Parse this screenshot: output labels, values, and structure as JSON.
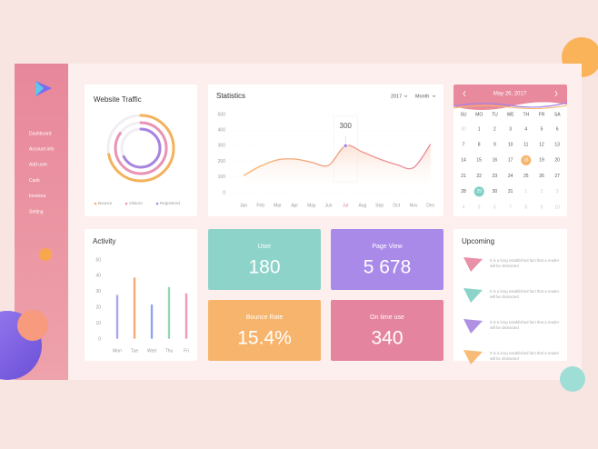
{
  "sidebar": {
    "menu": [
      "Dashboard",
      "Account info",
      "Add user",
      "Cash",
      "Invoices",
      "Setting"
    ]
  },
  "traffic": {
    "title": "Website Traffic",
    "rings": [
      {
        "name": "Bounce",
        "color": "#f5b25c",
        "value": 72
      },
      {
        "name": "Visitors",
        "color": "#e994b5",
        "value": 85
      },
      {
        "name": "Registered",
        "color": "#a784e0",
        "value": 68
      }
    ]
  },
  "statistics": {
    "title": "Statistics",
    "year": "2017",
    "period": "Month",
    "months": [
      "Jan",
      "Feb",
      "Mar",
      "Apr",
      "May",
      "Jun",
      "Jul",
      "Aug",
      "Sep",
      "Oct",
      "Nov",
      "Dec"
    ],
    "values": [
      110,
      170,
      210,
      215,
      195,
      175,
      300,
      260,
      215,
      180,
      160,
      310
    ],
    "ylim": [
      0,
      500
    ],
    "yticks": [
      0,
      100,
      200,
      300,
      400,
      500
    ],
    "highlight_color": "#e5839d"
  },
  "calendar": {
    "title": "May 26, 2017",
    "weekdays": [
      "SU",
      "MO",
      "TU",
      "WE",
      "TH",
      "FR",
      "SA"
    ],
    "weeks": [
      [
        "30",
        "1",
        "2",
        "3",
        "4",
        "5",
        "6"
      ],
      [
        "7",
        "8",
        "9",
        "10",
        "11",
        "12",
        "13"
      ],
      [
        "14",
        "15",
        "16",
        "17",
        {
          "day": "18",
          "color": "#f7b469"
        },
        "19",
        "20"
      ],
      [
        "21",
        "22",
        "23",
        "24",
        "25",
        "26",
        "27"
      ],
      [
        "28",
        {
          "day": "29",
          "color": "#7fcfc4"
        },
        "30",
        "31",
        "1",
        "2",
        "3"
      ],
      [
        "4",
        "5",
        "6",
        "7",
        "8",
        "9",
        "10"
      ]
    ]
  },
  "activity": {
    "title": "Activity",
    "days": [
      "Mon",
      "Tue",
      "Wed",
      "Thu",
      "Fri"
    ],
    "values": [
      28,
      39,
      22,
      33,
      29
    ],
    "colors": [
      "#a9a6f0",
      "#f5aa7c",
      "#8ea6ee",
      "#94d6b4",
      "#f19ab3"
    ],
    "ylim": [
      0,
      50
    ],
    "yticks": [
      0,
      10,
      20,
      30,
      40,
      50
    ]
  },
  "tiles": [
    {
      "label": "User",
      "value": "180",
      "color": "#8ed3c9"
    },
    {
      "label": "Page View",
      "value": "5 678",
      "color": "#aa8ae9"
    },
    {
      "label": "Bounce Rate",
      "value": "15.4%",
      "color": "#f7b46c"
    },
    {
      "label": "On time use",
      "value": "340",
      "color": "#e5849f"
    }
  ],
  "upcoming": {
    "title": "Upcoming",
    "items": [
      {
        "text": "It is a long established fact that a reader will be distracted",
        "color": "#e5849f"
      },
      {
        "text": "It is a long established fact that a reader will be distracted",
        "color": "#7fcfc4"
      },
      {
        "text": "It is a long established fact that a reader will be distracted",
        "color": "#a784e0"
      },
      {
        "text": "It is a long established fact that a reader will be distracted",
        "color": "#f7b469"
      }
    ]
  }
}
